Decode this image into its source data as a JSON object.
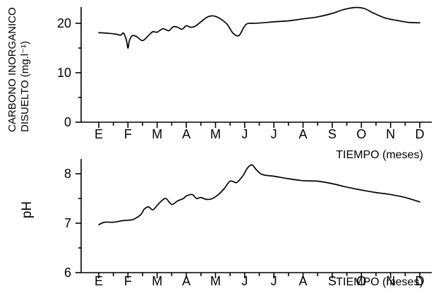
{
  "chart_data": [
    {
      "type": "line",
      "ylabel_lines": [
        "CARBONO INORGANICO",
        "DISUELTO (mg.l⁻¹)"
      ],
      "xlabel": "TIEMPO (meses)",
      "categories": [
        "E",
        "F",
        "M",
        "A",
        "M",
        "J",
        "J",
        "A",
        "S",
        "O",
        "N",
        "D"
      ],
      "ylim": [
        0,
        23
      ],
      "yticks": [
        0,
        10,
        20
      ],
      "grid": false,
      "series": [
        {
          "x": [
            0,
            0.3,
            0.6,
            0.75,
            0.85,
            0.95,
            1.0,
            1.05,
            1.15,
            1.3,
            1.5,
            1.7,
            1.85,
            2.0,
            2.2,
            2.4,
            2.55,
            2.7,
            2.85,
            3.0,
            3.15,
            3.3,
            3.5,
            3.7,
            3.85,
            4.0,
            4.2,
            4.4,
            4.6,
            4.8,
            4.95,
            5.05,
            5.15,
            5.3,
            5.6,
            6.0,
            6.5,
            7.0,
            7.5,
            8.0,
            8.4,
            8.8,
            9.1,
            9.4,
            9.8,
            10.2,
            10.6,
            11.0
          ],
          "y": [
            18.1,
            18.0,
            17.8,
            17.6,
            18.0,
            16.5,
            15.0,
            16.5,
            17.5,
            17.3,
            16.5,
            17.5,
            18.3,
            18.2,
            18.9,
            18.5,
            19.3,
            19.2,
            18.8,
            19.5,
            19.2,
            19.4,
            20.3,
            21.2,
            21.5,
            21.4,
            20.8,
            19.8,
            18.0,
            17.5,
            19.0,
            19.8,
            20.0,
            20.0,
            20.1,
            20.3,
            20.5,
            20.9,
            21.3,
            22.0,
            22.8,
            23.2,
            23.0,
            22.1,
            21.1,
            20.6,
            20.2,
            20.1
          ]
        }
      ]
    },
    {
      "type": "line",
      "ylabel": "pH",
      "xlabel": "TIEMPO (meses)",
      "categories": [
        "E",
        "F",
        "M",
        "A",
        "M",
        "J",
        "J",
        "A",
        "S",
        "O",
        "N",
        "D"
      ],
      "ylim": [
        6,
        8.3
      ],
      "yticks": [
        6,
        7,
        8
      ],
      "grid": false,
      "series": [
        {
          "x": [
            0,
            0.2,
            0.5,
            0.8,
            1.0,
            1.2,
            1.45,
            1.55,
            1.7,
            1.85,
            2.0,
            2.15,
            2.3,
            2.5,
            2.7,
            2.9,
            3.0,
            3.2,
            3.35,
            3.5,
            3.7,
            3.9,
            4.1,
            4.3,
            4.5,
            4.7,
            4.8,
            4.95,
            5.1,
            5.25,
            5.4,
            5.55,
            5.7,
            6.0,
            6.5,
            7.0,
            7.5,
            8.0,
            8.5,
            9.0,
            9.5,
            10.0,
            10.5,
            11.0
          ],
          "y": [
            6.97,
            7.02,
            7.02,
            7.05,
            7.06,
            7.08,
            7.18,
            7.28,
            7.33,
            7.27,
            7.36,
            7.45,
            7.5,
            7.38,
            7.45,
            7.5,
            7.55,
            7.58,
            7.5,
            7.52,
            7.48,
            7.5,
            7.58,
            7.7,
            7.85,
            7.82,
            7.86,
            7.97,
            8.12,
            8.18,
            8.08,
            8.0,
            7.97,
            7.95,
            7.9,
            7.86,
            7.85,
            7.8,
            7.73,
            7.67,
            7.62,
            7.58,
            7.52,
            7.43
          ]
        }
      ]
    }
  ]
}
